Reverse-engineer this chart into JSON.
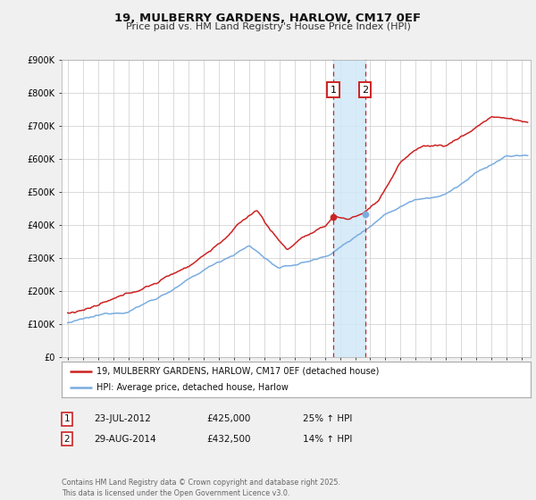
{
  "title": "19, MULBERRY GARDENS, HARLOW, CM17 0EF",
  "subtitle": "Price paid vs. HM Land Registry's House Price Index (HPI)",
  "legend_line1": "19, MULBERRY GARDENS, HARLOW, CM17 0EF (detached house)",
  "legend_line2": "HPI: Average price, detached house, Harlow",
  "transaction1_date": "23-JUL-2012",
  "transaction1_price": "£425,000",
  "transaction1_hpi": "25% ↑ HPI",
  "transaction2_date": "29-AUG-2014",
  "transaction2_price": "£432,500",
  "transaction2_hpi": "14% ↑ HPI",
  "transaction1_x": 2012.55,
  "transaction2_x": 2014.66,
  "transaction1_y": 425000,
  "transaction2_y": 432500,
  "footer": "Contains HM Land Registry data © Crown copyright and database right 2025.\nThis data is licensed under the Open Government Licence v3.0.",
  "hpi_color": "#7aace0",
  "price_color": "#cc2222",
  "background_color": "#f0f0f0",
  "plot_bg_color": "#ffffff",
  "grid_color": "#cccccc",
  "shade_color": "#d0e8f8",
  "ylim": [
    0,
    900000
  ],
  "xlim_start": 1994.6,
  "xlim_end": 2025.6,
  "yticks": [
    0,
    100000,
    200000,
    300000,
    400000,
    500000,
    600000,
    700000,
    800000,
    900000
  ],
  "yticklabels": [
    "£0",
    "£100K",
    "£200K",
    "£300K",
    "£400K",
    "£500K",
    "£600K",
    "£700K",
    "£800K",
    "£900K"
  ]
}
